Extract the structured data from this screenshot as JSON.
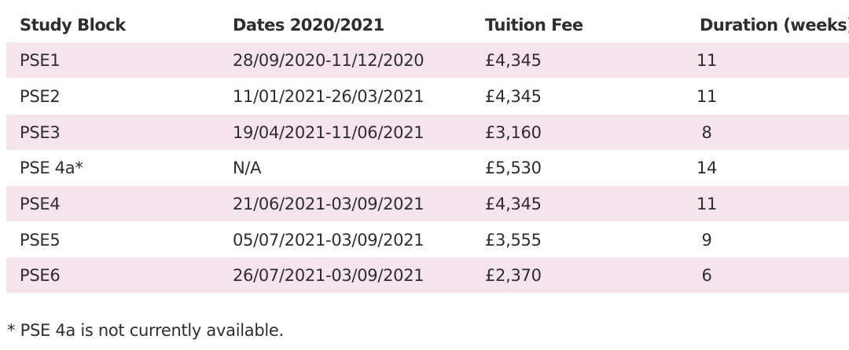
{
  "table": {
    "headers": [
      "Study Block",
      "Dates 2020/2021",
      "Tuition Fee",
      "Duration (weeks)"
    ],
    "rows": [
      [
        "PSE1",
        "28/09/2020-11/12/2020",
        "£4,345",
        "11"
      ],
      [
        "PSE2",
        "11/01/2021-26/03/2021",
        "£4,345",
        "11"
      ],
      [
        "PSE3",
        "19/04/2021-11/06/2021",
        "£3,160",
        "8"
      ],
      [
        "PSE 4a*",
        "N/A",
        "£5,530",
        "14"
      ],
      [
        "PSE4",
        "21/06/2021-03/09/2021",
        "£4,345",
        "11"
      ],
      [
        "PSE5",
        "05/07/2021-03/09/2021",
        "£3,555",
        "9"
      ],
      [
        "PSE6",
        "26/07/2021-03/09/2021",
        "£2,370",
        "6"
      ]
    ],
    "stripe_color": "#f5e4eb"
  },
  "footnote": "* PSE 4a is not currently available."
}
